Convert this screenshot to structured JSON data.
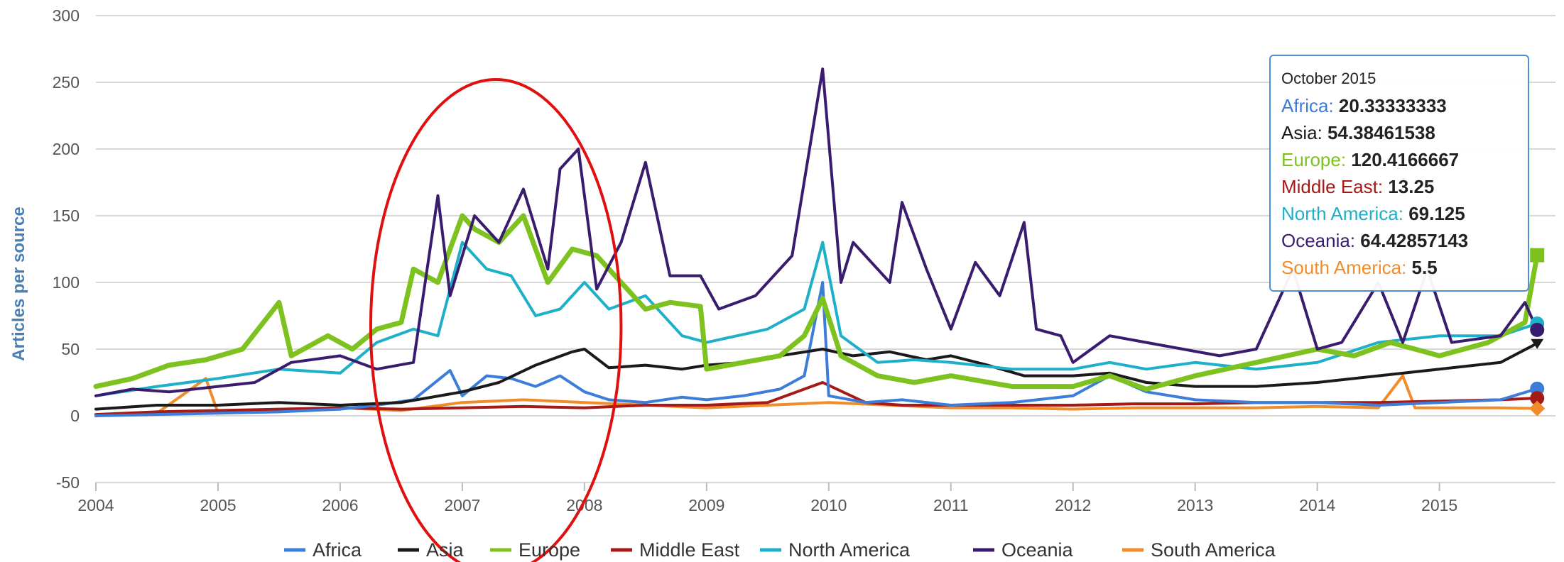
{
  "chart_data": {
    "type": "line",
    "ylabel": "Articles per source",
    "xlabel": "",
    "ylim": [
      -50,
      300
    ],
    "y_ticks": [
      -50,
      0,
      50,
      100,
      150,
      200,
      250,
      300
    ],
    "x_range": [
      2004.0,
      2015.95
    ],
    "x_ticks": [
      {
        "value": 2004,
        "label": "2004"
      },
      {
        "value": 2005,
        "label": "2005"
      },
      {
        "value": 2006,
        "label": "2006"
      },
      {
        "value": 2007,
        "label": "2007"
      },
      {
        "value": 2008,
        "label": "2008"
      },
      {
        "value": 2009,
        "label": "2009"
      },
      {
        "value": 2010,
        "label": "2010"
      },
      {
        "value": 2011,
        "label": "2011"
      },
      {
        "value": 2012,
        "label": "2012"
      },
      {
        "value": 2013,
        "label": "2013"
      },
      {
        "value": 2014,
        "label": "2014"
      },
      {
        "value": 2015,
        "label": "2015"
      }
    ],
    "grid": true,
    "legend_position": "bottom",
    "series": [
      {
        "name": "Africa",
        "color": "#3b7dd8",
        "points": [
          [
            2004.0,
            0
          ],
          [
            2004.5,
            1
          ],
          [
            2005.0,
            2
          ],
          [
            2005.5,
            3
          ],
          [
            2006.0,
            5
          ],
          [
            2006.3,
            8
          ],
          [
            2006.6,
            12
          ],
          [
            2006.9,
            34
          ],
          [
            2007.0,
            15
          ],
          [
            2007.2,
            30
          ],
          [
            2007.4,
            28
          ],
          [
            2007.6,
            22
          ],
          [
            2007.8,
            30
          ],
          [
            2008.0,
            18
          ],
          [
            2008.2,
            12
          ],
          [
            2008.5,
            10
          ],
          [
            2008.8,
            14
          ],
          [
            2009.0,
            12
          ],
          [
            2009.3,
            15
          ],
          [
            2009.6,
            20
          ],
          [
            2009.8,
            30
          ],
          [
            2009.95,
            100
          ],
          [
            2010.0,
            15
          ],
          [
            2010.3,
            10
          ],
          [
            2010.6,
            12
          ],
          [
            2011.0,
            8
          ],
          [
            2011.5,
            10
          ],
          [
            2012.0,
            15
          ],
          [
            2012.3,
            30
          ],
          [
            2012.6,
            18
          ],
          [
            2013.0,
            12
          ],
          [
            2013.5,
            10
          ],
          [
            2014.0,
            10
          ],
          [
            2014.5,
            8
          ],
          [
            2015.0,
            10
          ],
          [
            2015.5,
            12
          ],
          [
            2015.8,
            20.33
          ]
        ]
      },
      {
        "name": "Asia",
        "color": "#1a1a1a",
        "points": [
          [
            2004.0,
            5
          ],
          [
            2004.5,
            8
          ],
          [
            2005.0,
            8
          ],
          [
            2005.5,
            10
          ],
          [
            2006.0,
            8
          ],
          [
            2006.5,
            10
          ],
          [
            2007.0,
            18
          ],
          [
            2007.3,
            25
          ],
          [
            2007.6,
            38
          ],
          [
            2007.9,
            48
          ],
          [
            2008.0,
            50
          ],
          [
            2008.2,
            36
          ],
          [
            2008.5,
            38
          ],
          [
            2008.8,
            35
          ],
          [
            2009.0,
            38
          ],
          [
            2009.3,
            40
          ],
          [
            2009.6,
            45
          ],
          [
            2009.95,
            50
          ],
          [
            2010.2,
            45
          ],
          [
            2010.5,
            48
          ],
          [
            2010.8,
            42
          ],
          [
            2011.0,
            45
          ],
          [
            2011.3,
            38
          ],
          [
            2011.6,
            30
          ],
          [
            2012.0,
            30
          ],
          [
            2012.3,
            32
          ],
          [
            2012.6,
            25
          ],
          [
            2013.0,
            22
          ],
          [
            2013.5,
            22
          ],
          [
            2014.0,
            25
          ],
          [
            2014.5,
            30
          ],
          [
            2015.0,
            35
          ],
          [
            2015.5,
            40
          ],
          [
            2015.8,
            54.38
          ]
        ]
      },
      {
        "name": "Europe",
        "color": "#7dc21f",
        "points": [
          [
            2004.0,
            22
          ],
          [
            2004.3,
            28
          ],
          [
            2004.6,
            38
          ],
          [
            2004.9,
            42
          ],
          [
            2005.2,
            50
          ],
          [
            2005.5,
            85
          ],
          [
            2005.6,
            45
          ],
          [
            2005.9,
            60
          ],
          [
            2006.1,
            50
          ],
          [
            2006.3,
            65
          ],
          [
            2006.5,
            70
          ],
          [
            2006.6,
            110
          ],
          [
            2006.8,
            100
          ],
          [
            2007.0,
            150
          ],
          [
            2007.1,
            140
          ],
          [
            2007.3,
            130
          ],
          [
            2007.5,
            150
          ],
          [
            2007.7,
            100
          ],
          [
            2007.9,
            125
          ],
          [
            2008.1,
            120
          ],
          [
            2008.3,
            100
          ],
          [
            2008.5,
            80
          ],
          [
            2008.7,
            85
          ],
          [
            2008.95,
            82
          ],
          [
            2009.0,
            35
          ],
          [
            2009.3,
            40
          ],
          [
            2009.6,
            45
          ],
          [
            2009.8,
            60
          ],
          [
            2009.95,
            88
          ],
          [
            2010.1,
            45
          ],
          [
            2010.4,
            30
          ],
          [
            2010.7,
            25
          ],
          [
            2011.0,
            30
          ],
          [
            2011.5,
            22
          ],
          [
            2012.0,
            22
          ],
          [
            2012.3,
            30
          ],
          [
            2012.6,
            20
          ],
          [
            2013.0,
            30
          ],
          [
            2013.5,
            40
          ],
          [
            2014.0,
            50
          ],
          [
            2014.3,
            45
          ],
          [
            2014.6,
            55
          ],
          [
            2015.0,
            45
          ],
          [
            2015.4,
            55
          ],
          [
            2015.7,
            70
          ],
          [
            2015.8,
            120.42
          ]
        ]
      },
      {
        "name": "Middle East",
        "color": "#a51a16",
        "points": [
          [
            2004.0,
            1
          ],
          [
            2004.5,
            3
          ],
          [
            2005.0,
            4
          ],
          [
            2005.5,
            5
          ],
          [
            2006.0,
            6
          ],
          [
            2006.5,
            5
          ],
          [
            2007.0,
            6
          ],
          [
            2007.5,
            7
          ],
          [
            2008.0,
            6
          ],
          [
            2008.5,
            8
          ],
          [
            2009.0,
            8
          ],
          [
            2009.5,
            10
          ],
          [
            2009.95,
            25
          ],
          [
            2010.3,
            10
          ],
          [
            2010.6,
            8
          ],
          [
            2011.0,
            8
          ],
          [
            2011.5,
            8
          ],
          [
            2012.0,
            8
          ],
          [
            2012.5,
            9
          ],
          [
            2013.0,
            9
          ],
          [
            2013.5,
            10
          ],
          [
            2014.0,
            10
          ],
          [
            2014.5,
            10
          ],
          [
            2015.0,
            11
          ],
          [
            2015.5,
            12
          ],
          [
            2015.8,
            13.25
          ]
        ]
      },
      {
        "name": "North America",
        "color": "#1eb0c8",
        "points": [
          [
            2004.0,
            15
          ],
          [
            2004.5,
            22
          ],
          [
            2005.0,
            28
          ],
          [
            2005.5,
            35
          ],
          [
            2006.0,
            32
          ],
          [
            2006.3,
            55
          ],
          [
            2006.6,
            65
          ],
          [
            2006.8,
            60
          ],
          [
            2007.0,
            130
          ],
          [
            2007.2,
            110
          ],
          [
            2007.4,
            105
          ],
          [
            2007.6,
            75
          ],
          [
            2007.8,
            80
          ],
          [
            2008.0,
            100
          ],
          [
            2008.2,
            80
          ],
          [
            2008.5,
            90
          ],
          [
            2008.8,
            60
          ],
          [
            2009.0,
            55
          ],
          [
            2009.5,
            65
          ],
          [
            2009.8,
            80
          ],
          [
            2009.95,
            130
          ],
          [
            2010.1,
            60
          ],
          [
            2010.4,
            40
          ],
          [
            2010.7,
            42
          ],
          [
            2011.0,
            40
          ],
          [
            2011.5,
            35
          ],
          [
            2012.0,
            35
          ],
          [
            2012.3,
            40
          ],
          [
            2012.6,
            35
          ],
          [
            2013.0,
            40
          ],
          [
            2013.5,
            35
          ],
          [
            2014.0,
            40
          ],
          [
            2014.5,
            55
          ],
          [
            2015.0,
            60
          ],
          [
            2015.5,
            60
          ],
          [
            2015.8,
            69.13
          ]
        ]
      },
      {
        "name": "Oceania",
        "color": "#3a1c6e",
        "points": [
          [
            2004.0,
            15
          ],
          [
            2004.3,
            20
          ],
          [
            2004.6,
            18
          ],
          [
            2005.0,
            22
          ],
          [
            2005.3,
            25
          ],
          [
            2005.6,
            40
          ],
          [
            2006.0,
            45
          ],
          [
            2006.3,
            35
          ],
          [
            2006.6,
            40
          ],
          [
            2006.8,
            165
          ],
          [
            2006.9,
            90
          ],
          [
            2007.1,
            150
          ],
          [
            2007.3,
            130
          ],
          [
            2007.5,
            170
          ],
          [
            2007.7,
            110
          ],
          [
            2007.8,
            185
          ],
          [
            2007.95,
            200
          ],
          [
            2008.1,
            95
          ],
          [
            2008.3,
            130
          ],
          [
            2008.5,
            190
          ],
          [
            2008.7,
            105
          ],
          [
            2008.95,
            105
          ],
          [
            2009.1,
            80
          ],
          [
            2009.4,
            90
          ],
          [
            2009.7,
            120
          ],
          [
            2009.95,
            260
          ],
          [
            2010.1,
            100
          ],
          [
            2010.2,
            130
          ],
          [
            2010.5,
            100
          ],
          [
            2010.6,
            160
          ],
          [
            2010.8,
            110
          ],
          [
            2011.0,
            65
          ],
          [
            2011.2,
            115
          ],
          [
            2011.4,
            90
          ],
          [
            2011.6,
            145
          ],
          [
            2011.7,
            65
          ],
          [
            2011.9,
            60
          ],
          [
            2012.0,
            40
          ],
          [
            2012.3,
            60
          ],
          [
            2012.6,
            55
          ],
          [
            2012.9,
            50
          ],
          [
            2013.2,
            45
          ],
          [
            2013.5,
            50
          ],
          [
            2013.8,
            110
          ],
          [
            2014.0,
            50
          ],
          [
            2014.2,
            55
          ],
          [
            2014.5,
            100
          ],
          [
            2014.7,
            55
          ],
          [
            2014.9,
            110
          ],
          [
            2015.1,
            55
          ],
          [
            2015.5,
            60
          ],
          [
            2015.7,
            85
          ],
          [
            2015.8,
            64.43
          ]
        ]
      },
      {
        "name": "South America",
        "color": "#f08c2a",
        "points": [
          [
            2004.0,
            0
          ],
          [
            2004.5,
            2
          ],
          [
            2004.9,
            28
          ],
          [
            2005.0,
            2
          ],
          [
            2005.5,
            4
          ],
          [
            2006.0,
            6
          ],
          [
            2006.5,
            4
          ],
          [
            2007.0,
            10
          ],
          [
            2007.5,
            12
          ],
          [
            2008.0,
            10
          ],
          [
            2008.5,
            8
          ],
          [
            2009.0,
            6
          ],
          [
            2009.5,
            8
          ],
          [
            2010.0,
            10
          ],
          [
            2010.5,
            8
          ],
          [
            2011.0,
            6
          ],
          [
            2011.5,
            6
          ],
          [
            2012.0,
            5
          ],
          [
            2012.5,
            6
          ],
          [
            2013.0,
            6
          ],
          [
            2013.5,
            6
          ],
          [
            2014.0,
            7
          ],
          [
            2014.5,
            6
          ],
          [
            2014.7,
            30
          ],
          [
            2014.8,
            6
          ],
          [
            2015.0,
            6
          ],
          [
            2015.5,
            6
          ],
          [
            2015.8,
            5.5
          ]
        ]
      }
    ],
    "tooltip": {
      "title": "October 2015",
      "rows": [
        {
          "name": "Africa",
          "value": "20.33333333",
          "color": "#3b7dd8"
        },
        {
          "name": "Asia",
          "value": "54.38461538",
          "color": "#1a1a1a"
        },
        {
          "name": "Europe",
          "value": "120.4166667",
          "color": "#7dc21f"
        },
        {
          "name": "Middle East",
          "value": "13.25",
          "color": "#a51a16"
        },
        {
          "name": "North America",
          "value": "69.125",
          "color": "#1eb0c8"
        },
        {
          "name": "Oceania",
          "value": "64.42857143",
          "color": "#3a1c6e"
        },
        {
          "name": "South America",
          "value": "5.5",
          "color": "#f08c2a"
        }
      ]
    },
    "annotation": {
      "shape": "ellipse",
      "color": "#e01010",
      "x_from": 2006.25,
      "x_to": 2008.3
    }
  }
}
